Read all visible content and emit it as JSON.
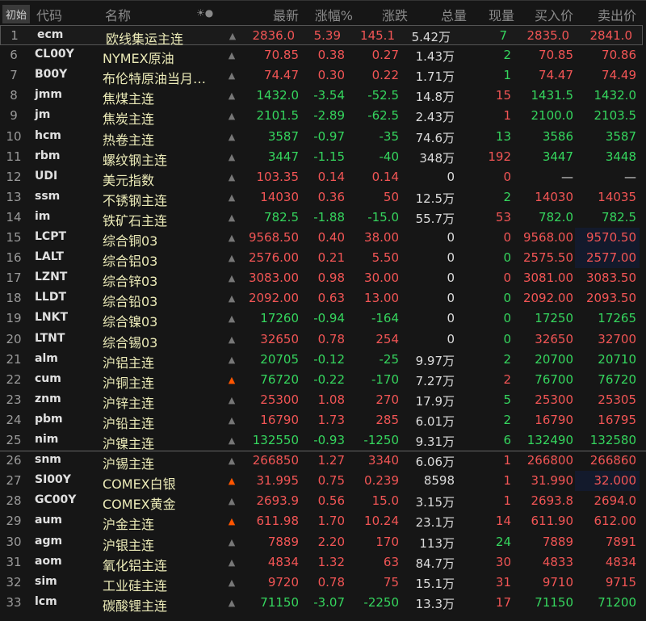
{
  "header": {
    "init_button": "初始",
    "columns": [
      "代码",
      "名称",
      "☀●",
      "最新",
      "涨幅%",
      "涨跌",
      "总量",
      "现量",
      "买入价",
      "卖出价"
    ]
  },
  "colors": {
    "up": "#f25555",
    "down": "#35d65e",
    "name": "#ecebb8",
    "bell_active": "#ff5500",
    "bell_inactive": "#777777",
    "highlight": "#131a2c"
  },
  "rows": [
    {
      "idx": "1",
      "code": "ecm",
      "name": "欧线集运主连",
      "bell": "inactive",
      "last": "2836.0",
      "pct": "5.39",
      "chg": "145.1",
      "vol": "5.42万",
      "cur": "7",
      "cur_dir": "down",
      "bid": "2835.0",
      "ask": "2841.0",
      "dir": "up",
      "selected": true
    },
    {
      "idx": "6",
      "code": "CL00Y",
      "name": "NYMEX原油",
      "bell": "inactive",
      "last": "70.85",
      "pct": "0.38",
      "chg": "0.27",
      "vol": "1.43万",
      "cur": "2",
      "cur_dir": "down",
      "bid": "70.85",
      "ask": "70.86",
      "dir": "up"
    },
    {
      "idx": "7",
      "code": "B00Y",
      "name": "布伦特原油当月…",
      "bell": "inactive",
      "last": "74.47",
      "pct": "0.30",
      "chg": "0.22",
      "vol": "1.71万",
      "cur": "1",
      "cur_dir": "down",
      "bid": "74.47",
      "ask": "74.49",
      "dir": "up"
    },
    {
      "idx": "8",
      "code": "jmm",
      "name": "焦煤主连",
      "bell": "inactive",
      "last": "1432.0",
      "pct": "-3.54",
      "chg": "-52.5",
      "vol": "14.8万",
      "cur": "15",
      "cur_dir": "up",
      "bid": "1431.5",
      "ask": "1432.0",
      "dir": "down"
    },
    {
      "idx": "9",
      "code": "jm",
      "name": "焦炭主连",
      "bell": "inactive",
      "last": "2101.5",
      "pct": "-2.89",
      "chg": "-62.5",
      "vol": "2.43万",
      "cur": "1",
      "cur_dir": "up",
      "bid": "2100.0",
      "ask": "2103.5",
      "dir": "down"
    },
    {
      "idx": "10",
      "code": "hcm",
      "name": "热卷主连",
      "bell": "inactive",
      "last": "3587",
      "pct": "-0.97",
      "chg": "-35",
      "vol": "74.6万",
      "cur": "13",
      "cur_dir": "down",
      "bid": "3586",
      "ask": "3587",
      "dir": "down"
    },
    {
      "idx": "11",
      "code": "rbm",
      "name": "螺纹钢主连",
      "bell": "inactive",
      "last": "3447",
      "pct": "-1.15",
      "chg": "-40",
      "vol": "348万",
      "cur": "192",
      "cur_dir": "up",
      "bid": "3447",
      "ask": "3448",
      "dir": "down"
    },
    {
      "idx": "12",
      "code": "UDI",
      "name": "美元指数",
      "bell": "inactive",
      "last": "103.35",
      "pct": "0.14",
      "chg": "0.14",
      "vol": "0",
      "cur": "0",
      "cur_dir": "up",
      "bid": "—",
      "ask": "—",
      "dir": "up",
      "bidask_white": true
    },
    {
      "idx": "13",
      "code": "ssm",
      "name": "不锈钢主连",
      "bell": "inactive",
      "last": "14030",
      "pct": "0.36",
      "chg": "50",
      "vol": "12.5万",
      "cur": "2",
      "cur_dir": "down",
      "bid": "14030",
      "ask": "14035",
      "dir": "up"
    },
    {
      "idx": "14",
      "code": "im",
      "name": "铁矿石主连",
      "bell": "inactive",
      "last": "782.5",
      "pct": "-1.88",
      "chg": "-15.0",
      "vol": "55.7万",
      "cur": "53",
      "cur_dir": "up",
      "bid": "782.0",
      "ask": "782.5",
      "dir": "down"
    },
    {
      "idx": "15",
      "code": "LCPT",
      "name": "综合铜03",
      "bell": "inactive",
      "last": "9568.50",
      "pct": "0.40",
      "chg": "38.00",
      "vol": "0",
      "cur": "0",
      "cur_dir": "up",
      "bid": "9568.00",
      "ask": "9570.50",
      "dir": "up",
      "ask_hl": true
    },
    {
      "idx": "16",
      "code": "LALT",
      "name": "综合铝03",
      "bell": "inactive",
      "last": "2576.00",
      "pct": "0.21",
      "chg": "5.50",
      "vol": "0",
      "cur": "0",
      "cur_dir": "down",
      "bid": "2575.50",
      "ask": "2577.00",
      "dir": "up",
      "ask_hl": true
    },
    {
      "idx": "17",
      "code": "LZNT",
      "name": "综合锌03",
      "bell": "inactive",
      "last": "3083.00",
      "pct": "0.98",
      "chg": "30.00",
      "vol": "0",
      "cur": "0",
      "cur_dir": "up",
      "bid": "3081.00",
      "ask": "3083.50",
      "dir": "up"
    },
    {
      "idx": "18",
      "code": "LLDT",
      "name": "综合铅03",
      "bell": "inactive",
      "last": "2092.00",
      "pct": "0.63",
      "chg": "13.00",
      "vol": "0",
      "cur": "0",
      "cur_dir": "down",
      "bid": "2092.00",
      "ask": "2093.50",
      "dir": "up"
    },
    {
      "idx": "19",
      "code": "LNKT",
      "name": "综合镍03",
      "bell": "inactive",
      "last": "17260",
      "pct": "-0.94",
      "chg": "-164",
      "vol": "0",
      "cur": "0",
      "cur_dir": "down",
      "bid": "17250",
      "ask": "17265",
      "dir": "down"
    },
    {
      "idx": "20",
      "code": "LTNT",
      "name": "综合锡03",
      "bell": "inactive",
      "last": "32650",
      "pct": "0.78",
      "chg": "254",
      "vol": "0",
      "cur": "0",
      "cur_dir": "down",
      "bid": "32650",
      "ask": "32700",
      "dir": "up"
    },
    {
      "idx": "21",
      "code": "alm",
      "name": "沪铝主连",
      "bell": "inactive",
      "last": "20705",
      "pct": "-0.12",
      "chg": "-25",
      "vol": "9.97万",
      "cur": "2",
      "cur_dir": "down",
      "bid": "20700",
      "ask": "20710",
      "dir": "down"
    },
    {
      "idx": "22",
      "code": "cum",
      "name": "沪铜主连",
      "bell": "active",
      "last": "76720",
      "pct": "-0.22",
      "chg": "-170",
      "vol": "7.27万",
      "cur": "2",
      "cur_dir": "up",
      "bid": "76700",
      "ask": "76720",
      "dir": "down"
    },
    {
      "idx": "23",
      "code": "znm",
      "name": "沪锌主连",
      "bell": "inactive",
      "last": "25300",
      "pct": "1.08",
      "chg": "270",
      "vol": "17.9万",
      "cur": "5",
      "cur_dir": "down",
      "bid": "25300",
      "ask": "25305",
      "dir": "up"
    },
    {
      "idx": "24",
      "code": "pbm",
      "name": "沪铅主连",
      "bell": "inactive",
      "last": "16790",
      "pct": "1.73",
      "chg": "285",
      "vol": "6.01万",
      "cur": "2",
      "cur_dir": "down",
      "bid": "16790",
      "ask": "16795",
      "dir": "up"
    },
    {
      "idx": "25",
      "code": "nim",
      "name": "沪镍主连",
      "bell": "inactive",
      "last": "132550",
      "pct": "-0.93",
      "chg": "-1250",
      "vol": "9.31万",
      "cur": "6",
      "cur_dir": "down",
      "bid": "132490",
      "ask": "132580",
      "dir": "down",
      "separator": true
    },
    {
      "idx": "26",
      "code": "snm",
      "name": "沪锡主连",
      "bell": "inactive",
      "last": "266850",
      "pct": "1.27",
      "chg": "3340",
      "vol": "6.06万",
      "cur": "1",
      "cur_dir": "up",
      "bid": "266800",
      "ask": "266860",
      "dir": "up"
    },
    {
      "idx": "27",
      "code": "SI00Y",
      "name": "COMEX白银",
      "bell": "active",
      "last": "31.995",
      "pct": "0.75",
      "chg": "0.239",
      "vol": "8598",
      "cur": "1",
      "cur_dir": "up",
      "bid": "31.990",
      "ask": "32.000",
      "dir": "up",
      "ask_hl": true
    },
    {
      "idx": "28",
      "code": "GC00Y",
      "name": "COMEX黄金",
      "bell": "inactive",
      "last": "2693.9",
      "pct": "0.56",
      "chg": "15.0",
      "vol": "3.15万",
      "cur": "1",
      "cur_dir": "up",
      "bid": "2693.8",
      "ask": "2694.0",
      "dir": "up"
    },
    {
      "idx": "29",
      "code": "aum",
      "name": "沪金主连",
      "bell": "active",
      "last": "611.98",
      "pct": "1.70",
      "chg": "10.24",
      "vol": "23.1万",
      "cur": "14",
      "cur_dir": "up",
      "bid": "611.90",
      "ask": "612.00",
      "dir": "up"
    },
    {
      "idx": "30",
      "code": "agm",
      "name": "沪银主连",
      "bell": "inactive",
      "last": "7889",
      "pct": "2.20",
      "chg": "170",
      "vol": "113万",
      "cur": "24",
      "cur_dir": "down",
      "bid": "7889",
      "ask": "7891",
      "dir": "up"
    },
    {
      "idx": "31",
      "code": "aom",
      "name": "氧化铝主连",
      "bell": "inactive",
      "last": "4834",
      "pct": "1.32",
      "chg": "63",
      "vol": "84.7万",
      "cur": "30",
      "cur_dir": "up",
      "bid": "4833",
      "ask": "4834",
      "dir": "up"
    },
    {
      "idx": "32",
      "code": "sim",
      "name": "工业硅主连",
      "bell": "inactive",
      "last": "9720",
      "pct": "0.78",
      "chg": "75",
      "vol": "15.1万",
      "cur": "31",
      "cur_dir": "up",
      "bid": "9710",
      "ask": "9715",
      "dir": "up"
    },
    {
      "idx": "33",
      "code": "lcm",
      "name": "碳酸锂主连",
      "bell": "inactive",
      "last": "71150",
      "pct": "-3.07",
      "chg": "-2250",
      "vol": "13.3万",
      "cur": "17",
      "cur_dir": "up",
      "bid": "71150",
      "ask": "71200",
      "dir": "down"
    }
  ]
}
